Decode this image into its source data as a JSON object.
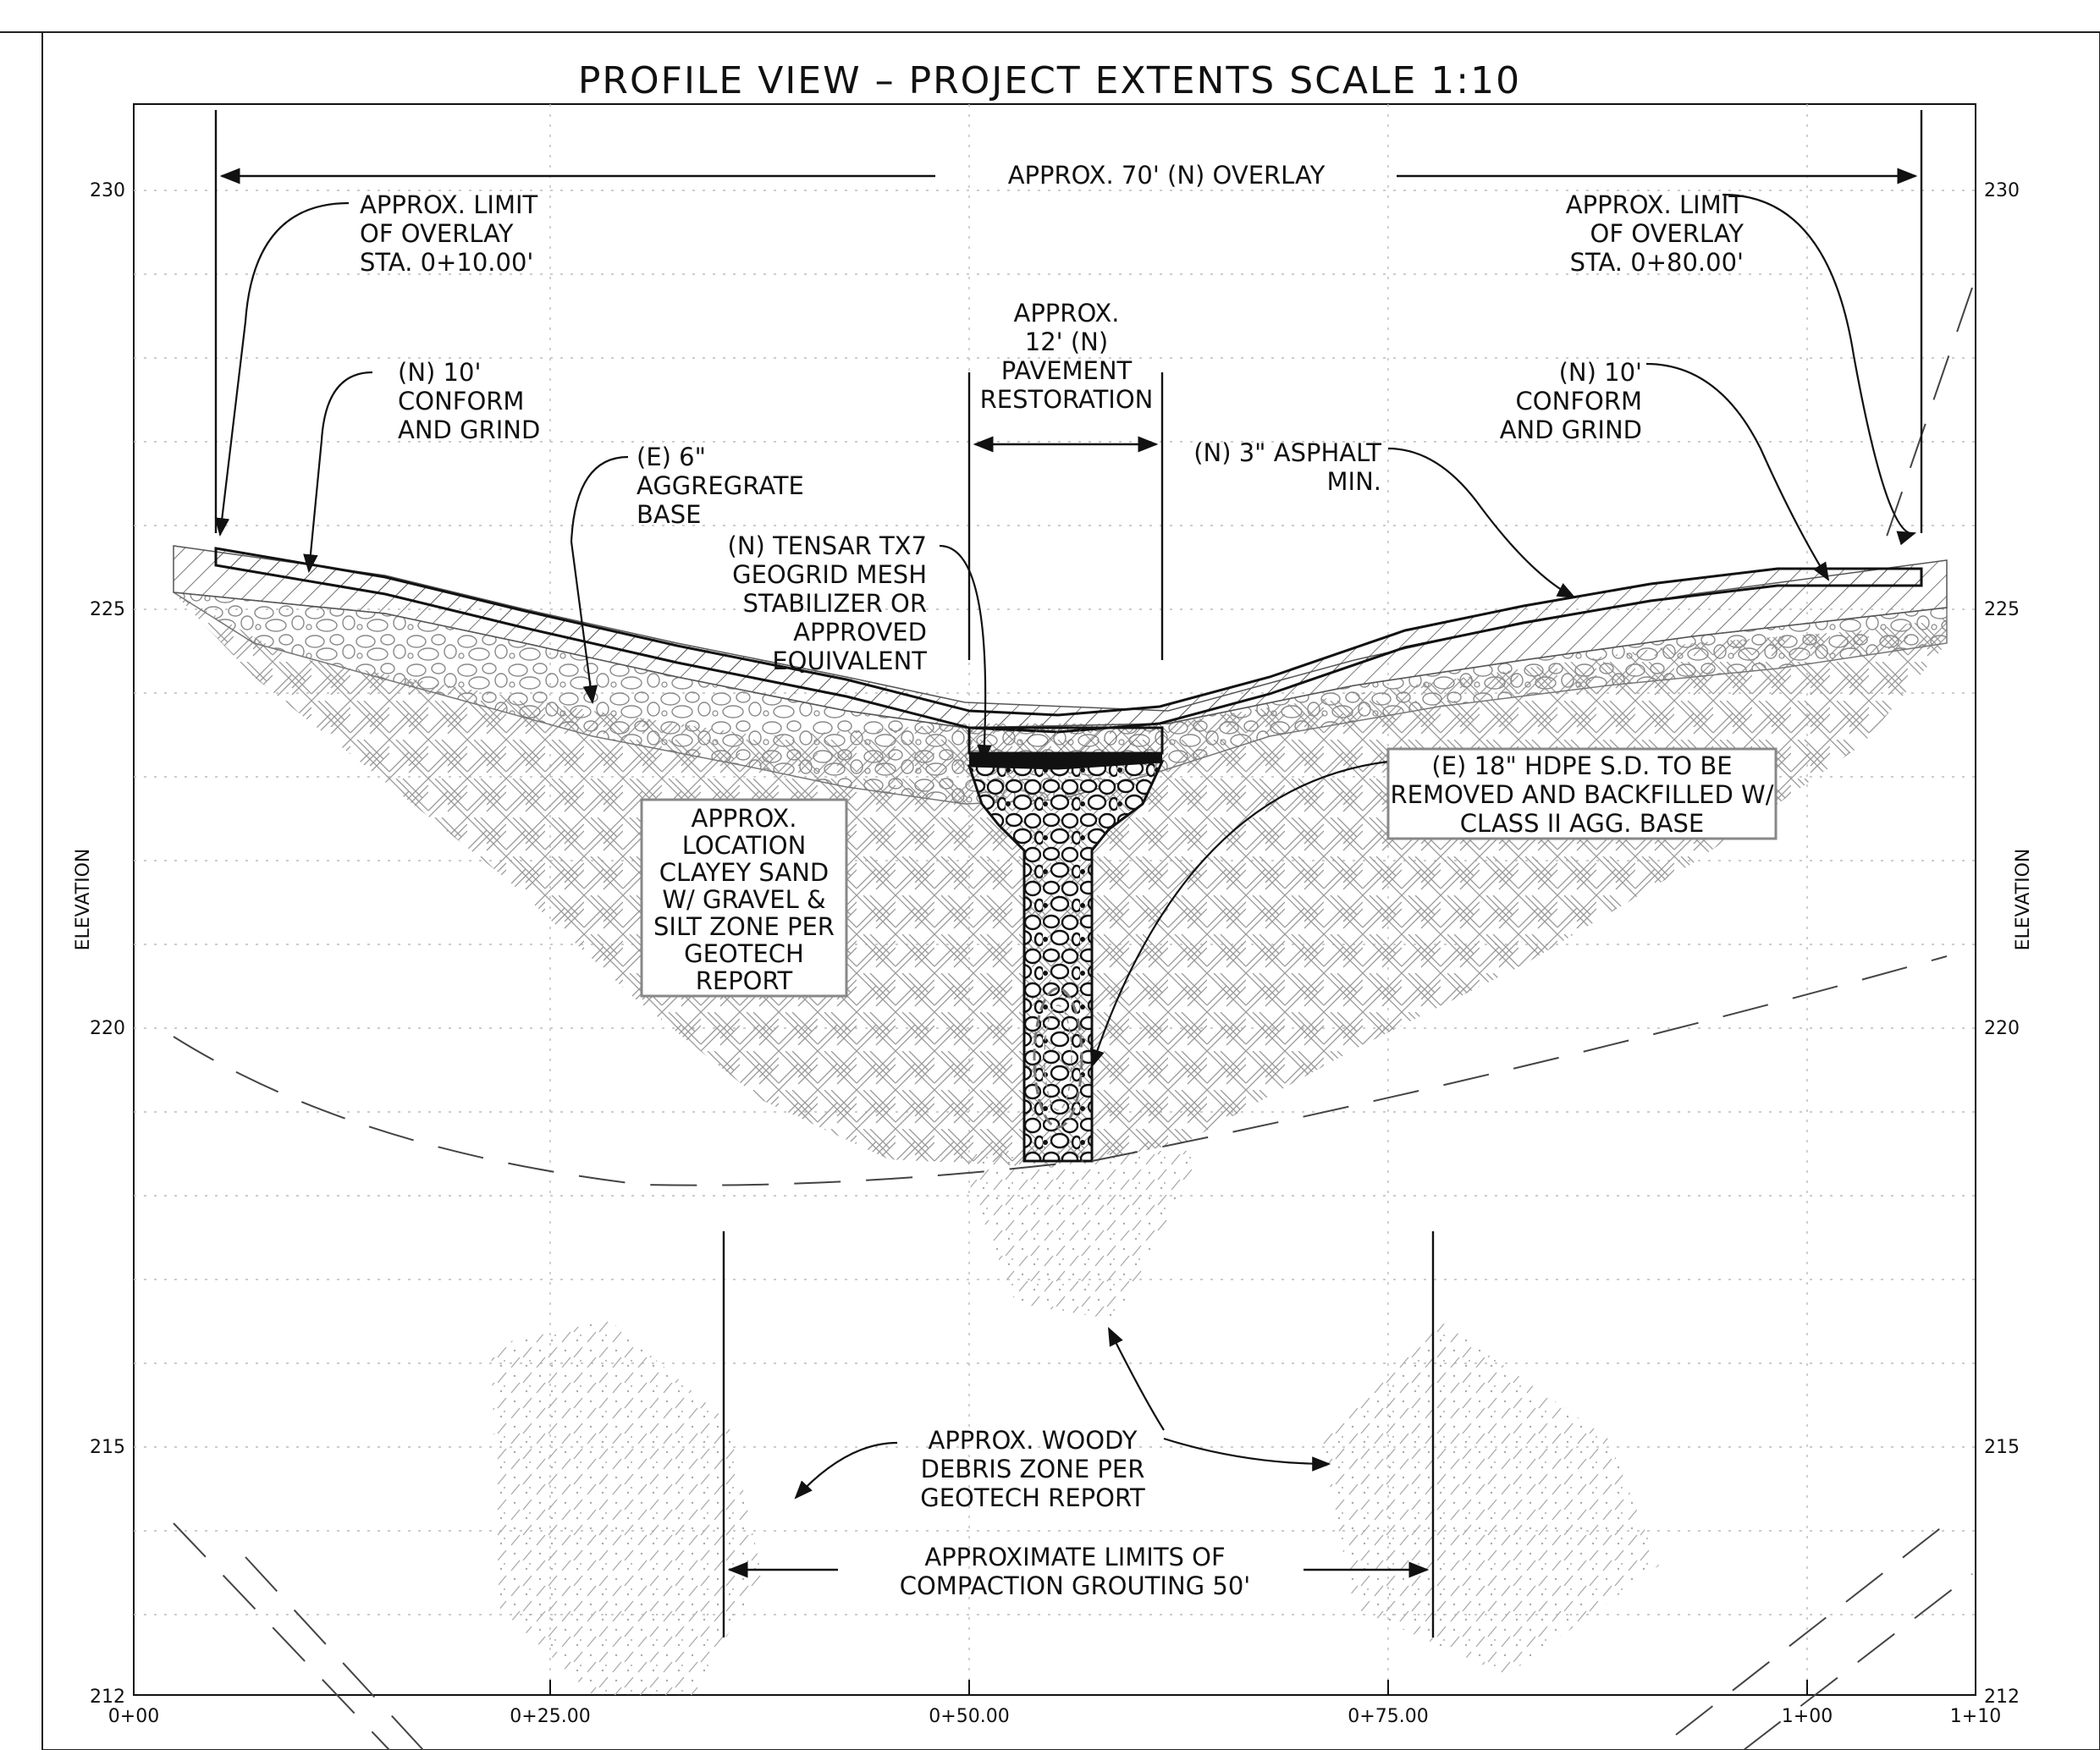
{
  "title": "PROFILE VIEW – PROJECT EXTENTS    SCALE 1:10",
  "axes": {
    "y_label": "ELEVATION",
    "y_ticks": [
      "230",
      "225",
      "220",
      "215",
      "212"
    ],
    "x_ticks": [
      "0+00",
      "0+25.00",
      "0+50.00",
      "0+75.00",
      "1+00",
      "1+10"
    ]
  },
  "notes": {
    "overlay_dim": "APPROX. 70' (N) OVERLAY",
    "limit_left": [
      "APPROX. LIMIT",
      "OF OVERLAY",
      "STA. 0+10.00'"
    ],
    "limit_right": [
      "APPROX.  LIMIT",
      "OF OVERLAY",
      "STA. 0+80.00'"
    ],
    "pavement": [
      "APPROX.",
      "12' (N)",
      "PAVEMENT",
      "RESTORATION"
    ],
    "conform_left": [
      "(N) 10'",
      "CONFORM",
      "AND GRIND"
    ],
    "conform_right": [
      "(N) 10'",
      "CONFORM",
      "AND GRIND"
    ],
    "agg_base": [
      "(E) 6\"",
      "AGGREGRATE",
      "BASE"
    ],
    "asphalt": [
      "(N) 3\" ASPHALT",
      "MIN."
    ],
    "tensar": [
      "(N) TENSAR TX7",
      "GEOGRID MESH",
      "STABILIZER OR",
      "APPROVED",
      "EQUIVALENT"
    ],
    "clayey": [
      "APPROX.",
      "LOCATION",
      "CLAYEY SAND",
      "W/ GRAVEL &",
      "SILT ZONE PER",
      "GEOTECH",
      "REPORT"
    ],
    "hdpe": [
      "(E) 18\" HDPE S.D. TO BE",
      "REMOVED AND BACKFILLED W/",
      "CLASS II AGG. BASE"
    ],
    "woody": [
      "APPROX.  WOODY",
      "DEBRIS ZONE PER",
      "GEOTECH REPORT"
    ],
    "grouting": [
      "APPROXIMATE LIMITS OF",
      "COMPACTION GROUTING 50'"
    ]
  }
}
